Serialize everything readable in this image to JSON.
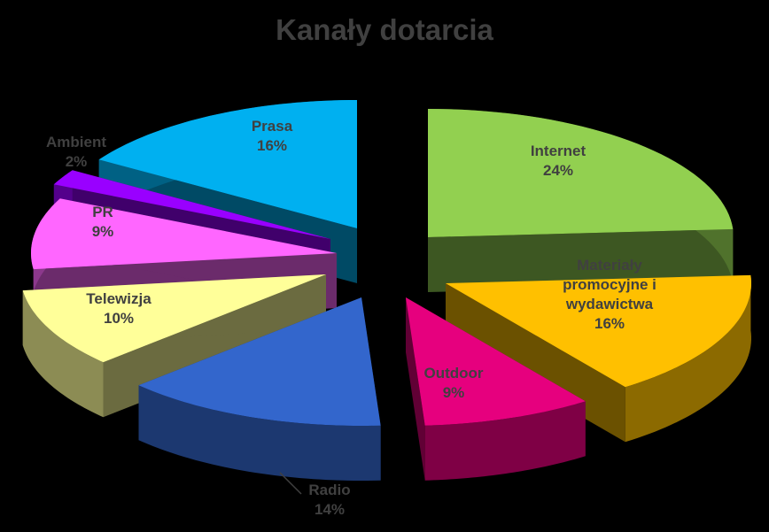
{
  "chart_data": {
    "type": "pie",
    "style": "exploded 3D pie",
    "title": "Kanały dotarcia",
    "unit": "%",
    "slices": [
      {
        "name": "Internet",
        "label_lines": [
          "Internet"
        ],
        "value": 24,
        "color": "#92d050"
      },
      {
        "name": "Materiały promocyjne i wydawictwa",
        "label_lines": [
          "Materiały",
          "promocyjne i",
          "wydawictwa"
        ],
        "value": 16,
        "color": "#ffc000"
      },
      {
        "name": "Outdoor",
        "label_lines": [
          "Outdoor"
        ],
        "value": 9,
        "color": "#e6007e"
      },
      {
        "name": "Radio",
        "label_lines": [
          "Radio"
        ],
        "value": 14,
        "color": "#3366cc"
      },
      {
        "name": "Telewizja",
        "label_lines": [
          "Telewizja"
        ],
        "value": 10,
        "color": "#ffff99"
      },
      {
        "name": "PR",
        "label_lines": [
          "PR"
        ],
        "value": 9,
        "color": "#ff66ff"
      },
      {
        "name": "Ambient",
        "label_lines": [
          "Ambient"
        ],
        "value": 2,
        "color": "#9900ff"
      },
      {
        "name": "Prasa",
        "label_lines": [
          "Prasa"
        ],
        "value": 16,
        "color": "#00b0f0"
      }
    ],
    "legend": "none",
    "label_color": "#404040",
    "title_color": "#404040",
    "background": "#000000"
  }
}
